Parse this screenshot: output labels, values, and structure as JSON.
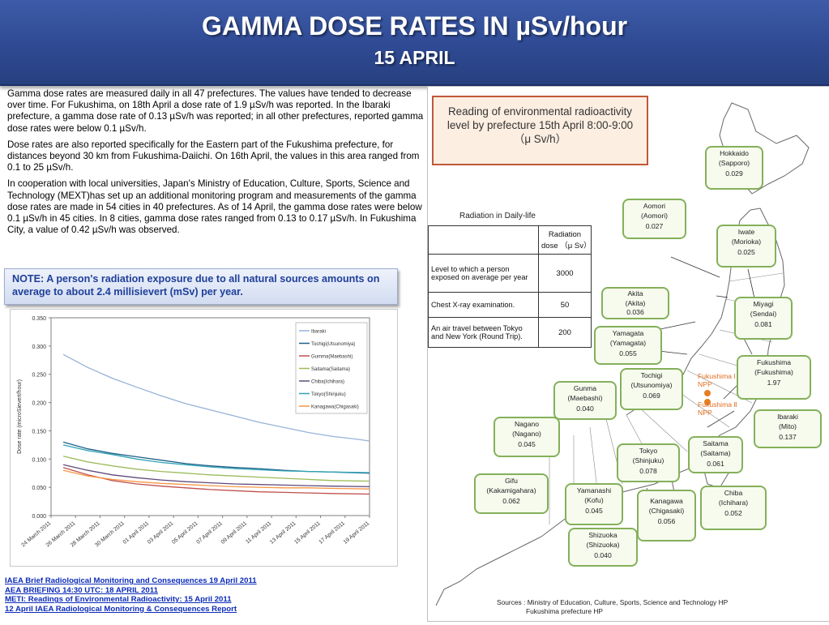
{
  "header": {
    "title": "GAMMA DOSE RATES IN µSv/hour",
    "subtitle": "15 APRIL"
  },
  "body_text": {
    "p1": "Gamma dose rates are measured daily in all 47 prefectures. The values have tended to decrease over time. For Fukushima, on 18th April a dose rate of 1.9 µSv/h was reported. In the Ibaraki prefecture, a gamma dose rate of 0.13 µSv/h was reported; in all other prefectures, reported gamma dose rates were below 0.1 µSv/h.",
    "p2": "Dose rates are also reported specifically for the Eastern part of the Fukushima prefecture, for distances beyond 30 km from Fukushima-Daiichi. On 16th April, the values in this area ranged from 0.1 to 25 µSv/h.",
    "p3": "In cooperation with local universities, Japan's Ministry of Education, Culture, Sports, Science and Technology (MEXT)has set up an additional monitoring program and measurements of the gamma dose rates are made in 54 cities in 40 prefectures. As of 14 April, the gamma dose rates were below 0.1 µSv/h in 45 cities. In 8 cities, gamma dose rates ranged from 0.13 to 0.17 µSv/h. In Fukushima City, a value of 0.42 µSv/h was observed."
  },
  "note": "NOTE:  A person's radiation exposure due to all natural sources amounts on average to about 2.4 millisievert (mSv) per year.",
  "links": [
    "IAEA Brief Radiological Monitoring and Consequences 19 April 2011",
    "AEA BRIEFING 14:30 UTC: 18 APRIL 2011",
    "METI: Readings of Environmental Radioactivity: 15 April 2011",
    "12 April IAEA Radiological Monitoring & Consequences Report"
  ],
  "chart_data": {
    "type": "line",
    "title": "",
    "xlabel": "",
    "ylabel": "Dose rate (microSievert/hour)",
    "ylim": [
      0,
      0.35
    ],
    "yticks": [
      "0.000",
      "0.050",
      "0.100",
      "0.150",
      "0.200",
      "0.250",
      "0.300",
      "0.350"
    ],
    "xlim": [
      "2011-03-24",
      "2011-04-19"
    ],
    "xticks": [
      "24 March 2011",
      "26 March 2011",
      "28 March 2011",
      "30 March 2011",
      "01 April 2011",
      "03 April 2011",
      "05 April 2011",
      "07 April 2011",
      "09 April 2011",
      "11 April 2011",
      "13 April 2011",
      "15 April 2011",
      "17 April 2011",
      "19 April 2011"
    ],
    "grid": false,
    "legend": "top-right",
    "series": [
      {
        "name": "Ibaraki",
        "color": "#95b3d7",
        "points": [
          [
            "2011-03-25",
            0.285
          ],
          [
            "2011-03-27",
            0.262
          ],
          [
            "2011-03-29",
            0.243
          ],
          [
            "2011-03-31",
            0.227
          ],
          [
            "2011-04-02",
            0.212
          ],
          [
            "2011-04-04",
            0.198
          ],
          [
            "2011-04-06",
            0.187
          ],
          [
            "2011-04-08",
            0.176
          ],
          [
            "2011-04-10",
            0.165
          ],
          [
            "2011-04-12",
            0.156
          ],
          [
            "2011-04-14",
            0.147
          ],
          [
            "2011-04-16",
            0.14
          ],
          [
            "2011-04-18",
            0.135
          ],
          [
            "2011-04-19",
            0.132
          ]
        ]
      },
      {
        "name": "Tochigi(Utsunomiya)",
        "color": "#1f5f8b",
        "points": [
          [
            "2011-03-25",
            0.13
          ],
          [
            "2011-03-27",
            0.118
          ],
          [
            "2011-03-29",
            0.11
          ],
          [
            "2011-03-31",
            0.104
          ],
          [
            "2011-04-02",
            0.098
          ],
          [
            "2011-04-04",
            0.092
          ],
          [
            "2011-04-06",
            0.088
          ],
          [
            "2011-04-08",
            0.085
          ],
          [
            "2011-04-10",
            0.083
          ],
          [
            "2011-04-12",
            0.08
          ],
          [
            "2011-04-14",
            0.078
          ],
          [
            "2011-04-16",
            0.077
          ],
          [
            "2011-04-19",
            0.075
          ]
        ]
      },
      {
        "name": "Gumma(Maebashi)",
        "color": "#c0504d",
        "points": [
          [
            "2011-03-25",
            0.085
          ],
          [
            "2011-03-27",
            0.072
          ],
          [
            "2011-03-29",
            0.062
          ],
          [
            "2011-03-31",
            0.056
          ],
          [
            "2011-04-02",
            0.052
          ],
          [
            "2011-04-04",
            0.049
          ],
          [
            "2011-04-06",
            0.046
          ],
          [
            "2011-04-08",
            0.044
          ],
          [
            "2011-04-10",
            0.042
          ],
          [
            "2011-04-12",
            0.041
          ],
          [
            "2011-04-14",
            0.04
          ],
          [
            "2011-04-16",
            0.039
          ],
          [
            "2011-04-19",
            0.038
          ]
        ]
      },
      {
        "name": "Saitama(Saitama)",
        "color": "#9bbb59",
        "points": [
          [
            "2011-03-25",
            0.105
          ],
          [
            "2011-03-27",
            0.095
          ],
          [
            "2011-03-29",
            0.088
          ],
          [
            "2011-03-31",
            0.082
          ],
          [
            "2011-04-02",
            0.078
          ],
          [
            "2011-04-04",
            0.075
          ],
          [
            "2011-04-06",
            0.072
          ],
          [
            "2011-04-08",
            0.07
          ],
          [
            "2011-04-10",
            0.068
          ],
          [
            "2011-04-12",
            0.066
          ],
          [
            "2011-04-14",
            0.064
          ],
          [
            "2011-04-16",
            0.062
          ],
          [
            "2011-04-19",
            0.061
          ]
        ]
      },
      {
        "name": "Chiba(Ichihara)",
        "color": "#604a7b",
        "points": [
          [
            "2011-03-25",
            0.09
          ],
          [
            "2011-03-27",
            0.08
          ],
          [
            "2011-03-29",
            0.072
          ],
          [
            "2011-03-31",
            0.067
          ],
          [
            "2011-04-02",
            0.063
          ],
          [
            "2011-04-04",
            0.06
          ],
          [
            "2011-04-06",
            0.058
          ],
          [
            "2011-04-08",
            0.056
          ],
          [
            "2011-04-10",
            0.055
          ],
          [
            "2011-04-12",
            0.054
          ],
          [
            "2011-04-14",
            0.053
          ],
          [
            "2011-04-16",
            0.052
          ],
          [
            "2011-04-19",
            0.051
          ]
        ]
      },
      {
        "name": "Tokyo(Shinjuku)",
        "color": "#31a4b3",
        "points": [
          [
            "2011-03-25",
            0.125
          ],
          [
            "2011-03-27",
            0.115
          ],
          [
            "2011-03-29",
            0.108
          ],
          [
            "2011-03-31",
            0.1
          ],
          [
            "2011-04-02",
            0.094
          ],
          [
            "2011-04-04",
            0.09
          ],
          [
            "2011-04-06",
            0.086
          ],
          [
            "2011-04-08",
            0.083
          ],
          [
            "2011-04-10",
            0.081
          ],
          [
            "2011-04-12",
            0.079
          ],
          [
            "2011-04-14",
            0.078
          ],
          [
            "2011-04-16",
            0.077
          ],
          [
            "2011-04-19",
            0.076
          ]
        ]
      },
      {
        "name": "Kanagawa(Chigasaki)",
        "color": "#f79646",
        "points": [
          [
            "2011-03-25",
            0.08
          ],
          [
            "2011-03-27",
            0.07
          ],
          [
            "2011-03-29",
            0.064
          ],
          [
            "2011-03-31",
            0.06
          ],
          [
            "2011-04-02",
            0.057
          ],
          [
            "2011-04-04",
            0.055
          ],
          [
            "2011-04-06",
            0.053
          ],
          [
            "2011-04-08",
            0.051
          ],
          [
            "2011-04-10",
            0.05
          ],
          [
            "2011-04-12",
            0.049
          ],
          [
            "2011-04-14",
            0.049
          ],
          [
            "2011-04-16",
            0.048
          ],
          [
            "2011-04-19",
            0.047
          ]
        ]
      }
    ]
  },
  "map": {
    "reading_box": {
      "line1": "Reading of environmental radioactivity",
      "line2": "level by prefecture 15th April  8:00-9:00",
      "line3": "（μ Sv/h）"
    },
    "daily_life": {
      "title": "Radiation in Daily-life",
      "header": "Radiation dose （μ Sv）",
      "rows": [
        {
          "label": "Level to which a person exposed on average per year",
          "value": "3000"
        },
        {
          "label": "Chest X-ray examination.",
          "value": "50"
        },
        {
          "label": "An air travel between Tokyo and New York (Round Trip).",
          "value": "200"
        }
      ]
    },
    "cities": [
      {
        "name": "Hokkaido",
        "sub": "(Sapporo)",
        "value": "0.029"
      },
      {
        "name": "Aomori",
        "sub": "(Aomori)",
        "value": "0.027"
      },
      {
        "name": "Iwate",
        "sub": "(Morioka)",
        "value": "0.025"
      },
      {
        "name": "Akita",
        "sub": "(Akita)",
        "value": "0.036"
      },
      {
        "name": "Miyagi",
        "sub": "(Sendai)",
        "value": "0.081"
      },
      {
        "name": "Yamagata",
        "sub": "(Yamagata)",
        "value": "0.055"
      },
      {
        "name": "Fukushima",
        "sub": "(Fukushima)",
        "value": "1.97"
      },
      {
        "name": "Tochigi",
        "sub": "(Utsunomiya)",
        "value": "0.069"
      },
      {
        "name": "Gunma",
        "sub": "(Maebashi)",
        "value": "0.040"
      },
      {
        "name": "Ibaraki",
        "sub": "(Mito)",
        "value": "0.137"
      },
      {
        "name": "Nagano",
        "sub": "(Nagano)",
        "value": "0.045"
      },
      {
        "name": "Saitama",
        "sub": "(Saitama)",
        "value": "0.061"
      },
      {
        "name": "Tokyo",
        "sub": "(Shinjuku)",
        "value": "0.078"
      },
      {
        "name": "Gifu",
        "sub": "(Kakamigahara)",
        "value": "0.062"
      },
      {
        "name": "Yamanashi",
        "sub": "(Kofu)",
        "value": "0.045"
      },
      {
        "name": "Kanagawa",
        "sub": "(Chigasaki)",
        "value": "0.056"
      },
      {
        "name": "Chiba",
        "sub": "(Ichihara)",
        "value": "0.052"
      },
      {
        "name": "Shizuoka",
        "sub": "(Shizuoka)",
        "value": "0.040"
      }
    ],
    "npp1": "Fukushima Ⅰ NPP",
    "npp2": "Fukushima Ⅱ NPP",
    "sources_line1": "Sources : Ministry of Education, Culture, Sports, Science and Technology HP",
    "sources_line2": "Fukushima prefecture  HP"
  }
}
